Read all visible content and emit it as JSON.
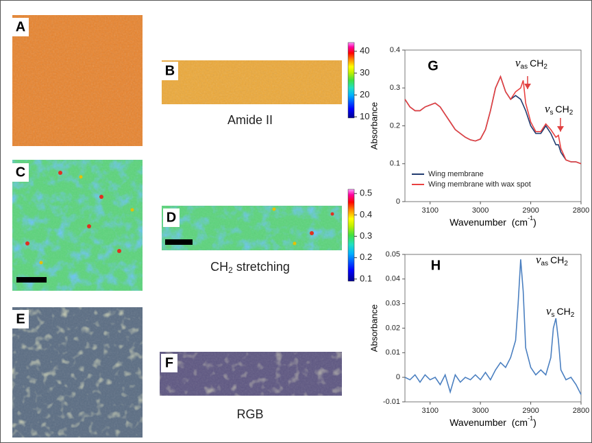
{
  "panel_labels": [
    "A",
    "B",
    "C",
    "D",
    "E",
    "F"
  ],
  "captions": {
    "amide": "Amide II",
    "ch2_main": "CH",
    "ch2_sub": "2",
    "ch2_rest": "stretching",
    "rgb": "RGB"
  },
  "colorbars": [
    {
      "lim": [
        9.5,
        44
      ],
      "ticks": [
        10,
        20,
        30,
        40
      ]
    },
    {
      "lim": [
        0.09,
        0.52
      ],
      "ticks": [
        0.1,
        0.2,
        0.3,
        0.4,
        0.5
      ]
    }
  ],
  "chart_data": [
    {
      "type": "line",
      "panel_label": "G",
      "y_label": "Absorbance",
      "x_label": "Wavenumber  (cm",
      "x_label_sup": "-1",
      "x_label_end": ")",
      "xlim": [
        3150,
        2800
      ],
      "xticks": [
        3100,
        3000,
        2900,
        2800
      ],
      "ylim": [
        0,
        0.4
      ],
      "yticks": [
        0,
        0.1,
        0.2,
        0.3,
        0.4
      ],
      "annotations": [
        {
          "nu": "ν",
          "sub": "as",
          "text": "CH",
          "text_sub": "2"
        },
        {
          "nu": "ν",
          "sub": "s",
          "text": "CH",
          "text_sub": "2"
        }
      ],
      "x": [
        3150,
        3140,
        3130,
        3120,
        3110,
        3100,
        3090,
        3080,
        3070,
        3060,
        3050,
        3040,
        3030,
        3020,
        3010,
        3000,
        2990,
        2980,
        2970,
        2960,
        2950,
        2940,
        2930,
        2920,
        2915,
        2910,
        2900,
        2890,
        2880,
        2870,
        2860,
        2850,
        2845,
        2840,
        2830,
        2820,
        2810,
        2800
      ],
      "series": [
        {
          "name": "Wing membrane",
          "color": "#1f3a6e",
          "values": [
            0.27,
            0.25,
            0.24,
            0.24,
            0.25,
            0.255,
            0.26,
            0.25,
            0.23,
            0.21,
            0.19,
            0.18,
            0.17,
            0.163,
            0.16,
            0.165,
            0.19,
            0.24,
            0.3,
            0.33,
            0.29,
            0.27,
            0.28,
            0.27,
            0.255,
            0.24,
            0.2,
            0.18,
            0.18,
            0.2,
            0.18,
            0.15,
            0.15,
            0.13,
            0.11,
            0.105,
            0.105,
            0.1
          ]
        },
        {
          "name": "Wing membrane with wax spot",
          "color": "#e84040",
          "values": [
            0.27,
            0.25,
            0.24,
            0.24,
            0.25,
            0.255,
            0.26,
            0.25,
            0.23,
            0.21,
            0.19,
            0.18,
            0.17,
            0.163,
            0.16,
            0.165,
            0.19,
            0.24,
            0.3,
            0.33,
            0.29,
            0.27,
            0.29,
            0.3,
            0.32,
            0.26,
            0.21,
            0.185,
            0.185,
            0.205,
            0.19,
            0.17,
            0.175,
            0.14,
            0.11,
            0.105,
            0.105,
            0.1
          ]
        }
      ]
    },
    {
      "type": "line",
      "panel_label": "H",
      "y_label": "Absorbance",
      "x_label": "Wavenumber  (cm",
      "x_label_sup": "-1",
      "x_label_end": ")",
      "xlim": [
        3150,
        2800
      ],
      "xticks": [
        3100,
        3000,
        2900,
        2800
      ],
      "ylim": [
        -0.01,
        0.05
      ],
      "yticks": [
        -0.01,
        0,
        0.01,
        0.02,
        0.03,
        0.04,
        0.05
      ],
      "annotations": [
        {
          "nu": "ν",
          "sub": "as",
          "text": "CH",
          "text_sub": "2"
        },
        {
          "nu": "ν",
          "sub": "s",
          "text": "CH",
          "text_sub": "2"
        }
      ],
      "x": [
        3150,
        3140,
        3130,
        3120,
        3110,
        3100,
        3090,
        3080,
        3070,
        3060,
        3050,
        3040,
        3030,
        3020,
        3010,
        3000,
        2990,
        2980,
        2970,
        2960,
        2950,
        2940,
        2930,
        2925,
        2920,
        2915,
        2910,
        2900,
        2890,
        2880,
        2870,
        2860,
        2855,
        2850,
        2845,
        2840,
        2830,
        2820,
        2810,
        2800
      ],
      "series": [
        {
          "color": "#4a7fc0",
          "values": [
            0,
            -0.001,
            0.001,
            -0.002,
            0.001,
            -0.001,
            0,
            -0.003,
            0.001,
            -0.006,
            0.001,
            -0.002,
            0,
            -0.001,
            0.001,
            -0.001,
            0.002,
            -0.001,
            0.003,
            0.006,
            0.004,
            0.008,
            0.015,
            0.03,
            0.048,
            0.035,
            0.012,
            0.004,
            0.001,
            0.003,
            0.001,
            0.008,
            0.02,
            0.024,
            0.015,
            0.003,
            -0.001,
            0,
            -0.003,
            -0.007
          ]
        }
      ]
    }
  ]
}
